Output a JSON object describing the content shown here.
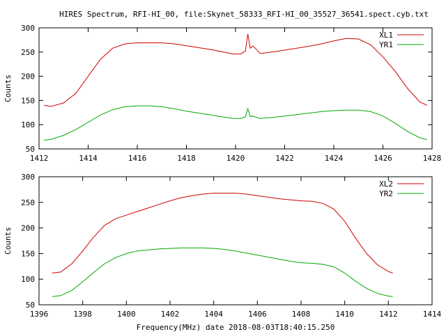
{
  "title": "HIRES Spectrum, RFI-HI_00, file:Skynet_58333_RFI-HI_00_35527_36541.spect.cyb.txt",
  "xlabel": "Frequency(MHz) date 2018-08-03T18:40:15.250",
  "colors": {
    "red": "#cc0000",
    "green": "#00aa00",
    "axis": "#000000"
  },
  "chart_data": [
    {
      "type": "line",
      "title": "HIRES Spectrum, RFI-HI_00, file:Skynet_58333_RFI-HI_00_35527_36541.spect.cyb.txt",
      "xlabel": "",
      "ylabel": "Counts",
      "xlim": [
        1412,
        1428
      ],
      "ylim": [
        50,
        300
      ],
      "xticks": [
        1412,
        1414,
        1416,
        1418,
        1420,
        1422,
        1424,
        1426,
        1428
      ],
      "yticks": [
        50,
        100,
        150,
        200,
        250,
        300
      ],
      "legend_position": "top-right",
      "series": [
        {
          "name": "XL1",
          "color": "#cc0000",
          "x": [
            1412.2,
            1412.5,
            1413.0,
            1413.5,
            1414.0,
            1414.5,
            1415.0,
            1415.5,
            1416.0,
            1416.5,
            1417.0,
            1417.5,
            1418.0,
            1418.5,
            1419.0,
            1419.5,
            1419.9,
            1420.2,
            1420.4,
            1420.5,
            1420.6,
            1420.7,
            1420.8,
            1421.0,
            1421.5,
            1422.0,
            1422.5,
            1423.0,
            1423.5,
            1424.0,
            1424.5,
            1425.0,
            1425.5,
            1426.0,
            1426.5,
            1427.0,
            1427.5,
            1427.8
          ],
          "y": [
            140,
            138,
            145,
            165,
            200,
            235,
            258,
            267,
            269,
            269,
            269,
            267,
            263,
            259,
            255,
            250,
            246,
            246,
            252,
            287,
            258,
            262,
            258,
            247,
            250,
            254,
            258,
            262,
            267,
            273,
            278,
            277,
            265,
            240,
            210,
            175,
            147,
            140
          ]
        },
        {
          "name": "YR1",
          "color": "#00aa00",
          "x": [
            1412.2,
            1412.5,
            1413.0,
            1413.5,
            1414.0,
            1414.5,
            1415.0,
            1415.5,
            1416.0,
            1416.5,
            1417.0,
            1417.5,
            1418.0,
            1418.5,
            1419.0,
            1419.5,
            1419.9,
            1420.2,
            1420.4,
            1420.5,
            1420.6,
            1420.7,
            1420.8,
            1421.0,
            1421.5,
            1422.0,
            1422.5,
            1423.0,
            1423.5,
            1424.0,
            1424.5,
            1425.0,
            1425.5,
            1426.0,
            1426.5,
            1427.0,
            1427.5,
            1427.8
          ],
          "y": [
            68,
            70,
            78,
            90,
            105,
            120,
            131,
            137,
            139,
            139,
            137,
            133,
            128,
            124,
            120,
            116,
            113,
            113,
            116,
            133,
            117,
            118,
            116,
            113,
            115,
            118,
            121,
            124,
            127,
            129,
            130,
            130,
            127,
            118,
            103,
            86,
            73,
            69
          ]
        }
      ]
    },
    {
      "type": "line",
      "title": "",
      "xlabel": "Frequency(MHz) date 2018-08-03T18:40:15.250",
      "ylabel": "Counts",
      "xlim": [
        1396,
        1414
      ],
      "ylim": [
        50,
        300
      ],
      "xticks": [
        1396,
        1398,
        1400,
        1402,
        1404,
        1406,
        1408,
        1410,
        1412,
        1414
      ],
      "yticks": [
        50,
        100,
        150,
        200,
        250,
        300
      ],
      "legend_position": "top-right",
      "series": [
        {
          "name": "XL2",
          "color": "#cc0000",
          "x": [
            1396.6,
            1397.0,
            1397.5,
            1398.0,
            1398.5,
            1399.0,
            1399.5,
            1400.0,
            1400.5,
            1401.0,
            1401.5,
            1402.0,
            1402.5,
            1403.0,
            1403.5,
            1404.0,
            1404.5,
            1405.0,
            1405.5,
            1406.0,
            1406.5,
            1407.0,
            1407.5,
            1408.0,
            1408.5,
            1409.0,
            1409.5,
            1410.0,
            1410.5,
            1411.0,
            1411.5,
            1412.0,
            1412.2
          ],
          "y": [
            112,
            114,
            130,
            155,
            182,
            205,
            218,
            225,
            232,
            239,
            246,
            253,
            259,
            263,
            266,
            268,
            268,
            268,
            266,
            263,
            260,
            257,
            255,
            253,
            252,
            248,
            237,
            213,
            180,
            150,
            128,
            115,
            112
          ]
        },
        {
          "name": "YR2",
          "color": "#00aa00",
          "x": [
            1396.6,
            1397.0,
            1397.5,
            1398.0,
            1398.5,
            1399.0,
            1399.5,
            1400.0,
            1400.5,
            1401.0,
            1401.5,
            1402.0,
            1402.5,
            1403.0,
            1403.5,
            1404.0,
            1404.5,
            1405.0,
            1405.5,
            1406.0,
            1406.5,
            1407.0,
            1407.5,
            1408.0,
            1408.5,
            1409.0,
            1409.5,
            1410.0,
            1410.5,
            1411.0,
            1411.5,
            1412.0,
            1412.2
          ],
          "y": [
            66,
            68,
            78,
            95,
            113,
            130,
            142,
            150,
            155,
            157,
            159,
            160,
            161,
            161,
            161,
            160,
            158,
            155,
            151,
            147,
            143,
            139,
            135,
            132,
            131,
            129,
            124,
            112,
            96,
            82,
            72,
            67,
            66
          ]
        }
      ]
    }
  ]
}
